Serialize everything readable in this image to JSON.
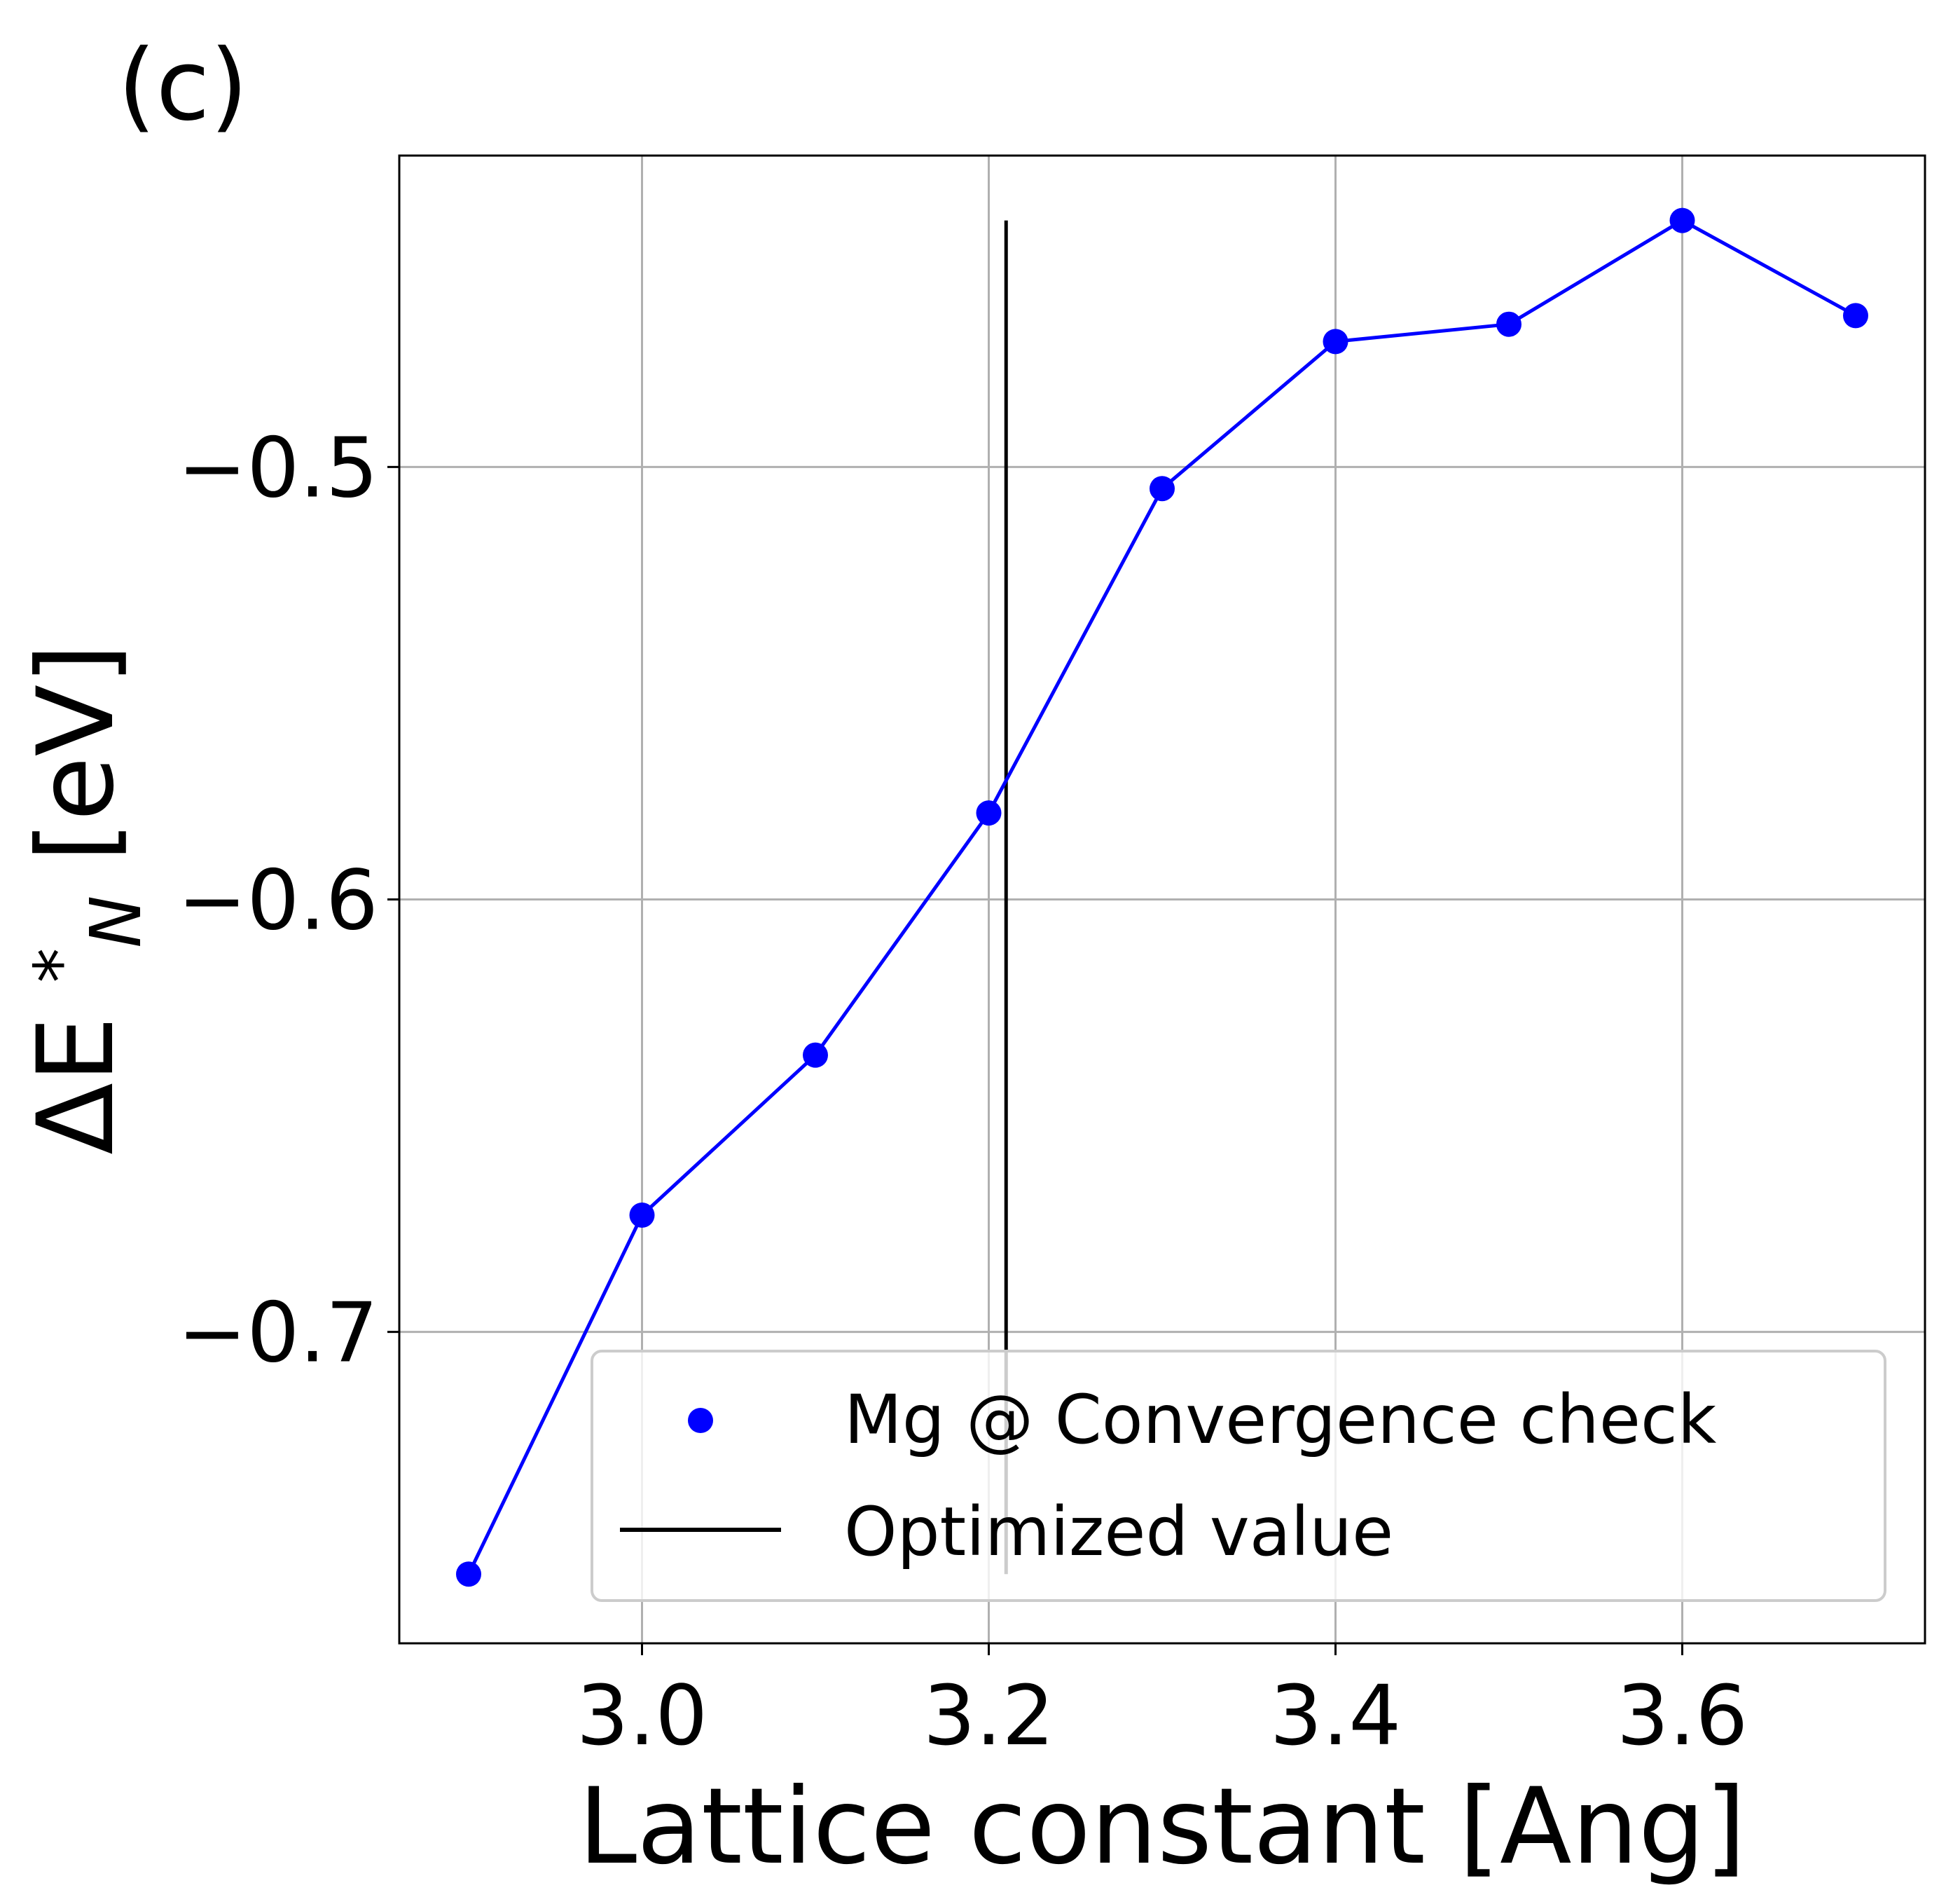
{
  "panel_label": "(c)",
  "chart_data": {
    "type": "line",
    "xlabel": "Lattice constant [Ang]",
    "ylabel": "ΔE *N [eV]",
    "ylabel_parts": {
      "main": "ΔE ",
      "sup": "*",
      "sub": "N",
      "unit": " [eV]"
    },
    "xlim": [
      2.86,
      3.74
    ],
    "ylim": [
      -0.772,
      -0.428
    ],
    "xticks": [
      3.0,
      3.2,
      3.4,
      3.6
    ],
    "xtick_labels": [
      "3.0",
      "3.2",
      "3.4",
      "3.6"
    ],
    "yticks": [
      -0.5,
      -0.6,
      -0.7
    ],
    "ytick_labels": [
      "−0.5",
      "−0.6",
      "−0.7"
    ],
    "grid": true,
    "legend_position": "lower-right",
    "series": [
      {
        "name": "Mg @ Convergence check",
        "kind": "line+markers",
        "color": "#0000ff",
        "x": [
          2.9,
          3.0,
          3.1,
          3.2,
          3.3,
          3.4,
          3.5,
          3.6,
          3.7
        ],
        "y": [
          -0.756,
          -0.673,
          -0.636,
          -0.58,
          -0.505,
          -0.471,
          -0.467,
          -0.443,
          -0.465
        ]
      },
      {
        "name": "Optimized value",
        "kind": "vline",
        "color": "#000000",
        "x": 3.21,
        "y_range": [
          -0.756,
          -0.443
        ]
      }
    ]
  }
}
